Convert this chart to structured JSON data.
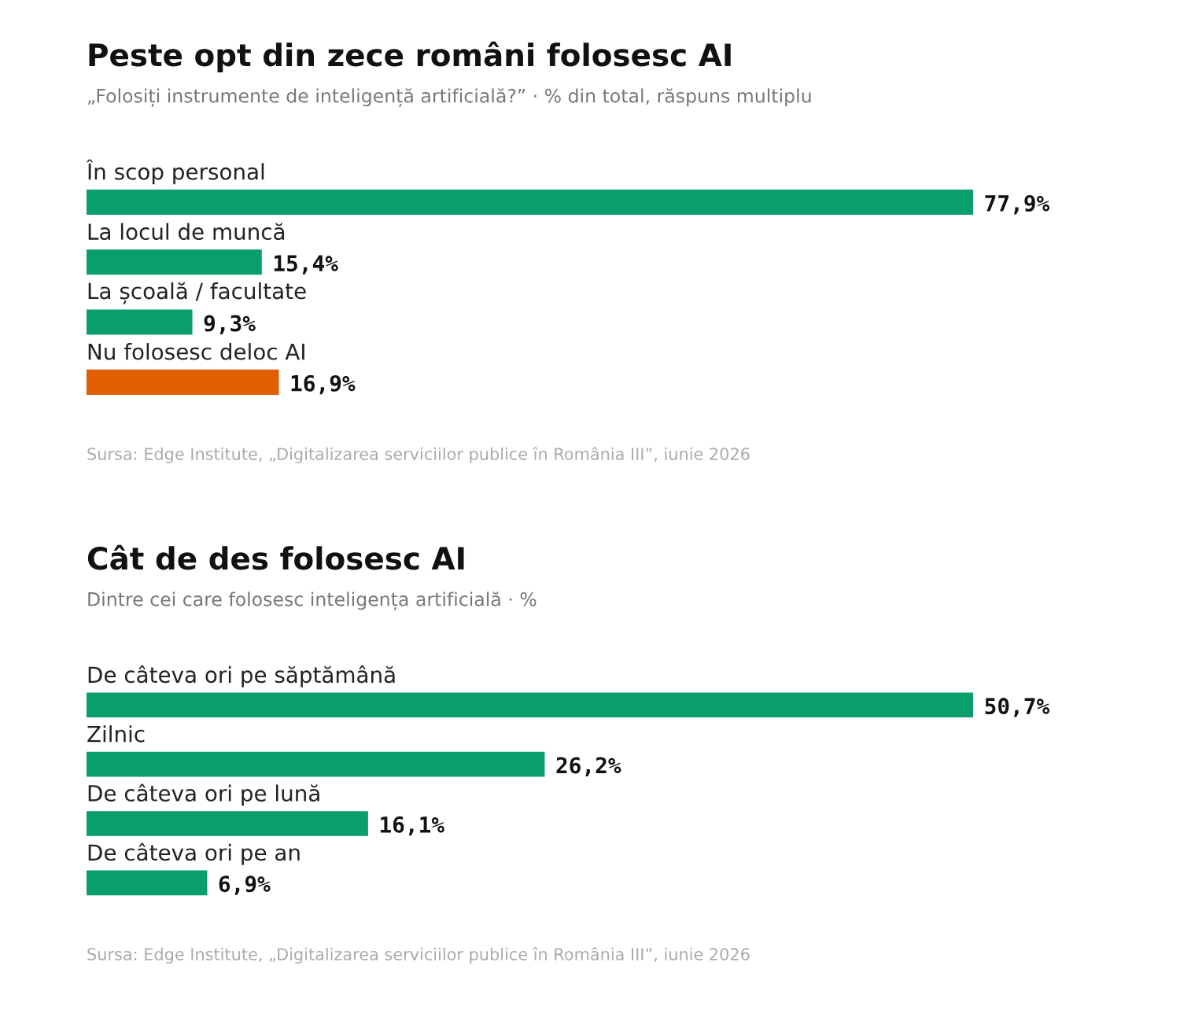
{
  "chart_data": [
    {
      "type": "bar",
      "orientation": "horizontal",
      "title": "Peste opt din zece români folosesc AI",
      "subtitle": "„Folosiți instrumente de inteligență artificială?” · % din total, răspuns multiplu",
      "categories": [
        "În scop personal",
        "La locul de muncă",
        "La școală / facultate",
        "Nu folosesc deloc AI"
      ],
      "values": [
        77.9,
        15.4,
        9.3,
        16.9
      ],
      "colors": [
        "#0a9e6c",
        "#0a9e6c",
        "#0a9e6c",
        "#e05f00"
      ],
      "value_labels": [
        "77,9%",
        "15,4%",
        "9,3%",
        "16,9%"
      ],
      "annotations": [
        "Sursa: Edge Institute, „Digitalizarea serviciilor publice în România III”, iunie 2026"
      ]
    },
    {
      "type": "bar",
      "orientation": "horizontal",
      "title": "Cât de des folosesc AI",
      "subtitle": "Dintre cei care folosesc inteligența artificială · %",
      "categories": [
        "De câteva ori pe săptămână",
        "Zilnic",
        "De câteva ori pe lună",
        "De câteva ori pe an"
      ],
      "values": [
        50.7,
        26.2,
        16.1,
        6.9
      ],
      "colors": [
        "#0a9e6c",
        "#0a9e6c",
        "#0a9e6c",
        "#0a9e6c"
      ],
      "value_labels": [
        "50,7%",
        "26,2%",
        "16,1%",
        "6,9%"
      ],
      "annotations": [
        "Sursa: Edge Institute, „Digitalizarea serviciilor publice în România III”, iunie 2026"
      ]
    }
  ]
}
